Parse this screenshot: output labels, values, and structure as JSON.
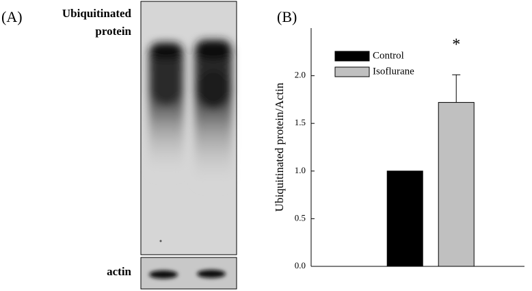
{
  "panel_a": {
    "label": "(A)",
    "blot_label_line1": "Ubiquitinated",
    "blot_label_line2": "protein",
    "loading_label": "actin"
  },
  "chart_data": {
    "type": "bar",
    "panel_label": "(B)",
    "ylabel": "Ubiquitinated protein/Actin",
    "categories": [
      null
    ],
    "series": [
      {
        "name": "Control",
        "color": "#000000",
        "values": [
          1.0
        ]
      },
      {
        "name": "Isoflurane",
        "color": "#c0c0c0",
        "values": [
          1.72
        ],
        "errors": [
          0.29
        ]
      }
    ],
    "annotations": [
      {
        "text": "*",
        "series": 1,
        "index": 0
      }
    ],
    "ylim": [
      0,
      2.5
    ],
    "yticks": [
      {
        "value": 0,
        "label": "0.0"
      },
      {
        "value": 0.5,
        "label": "0.5"
      },
      {
        "value": 1,
        "label": "1.0"
      },
      {
        "value": 1.5,
        "label": "1.5"
      },
      {
        "value": 2,
        "label": "2.0"
      }
    ],
    "legend": "upper left",
    "grid": false
  }
}
